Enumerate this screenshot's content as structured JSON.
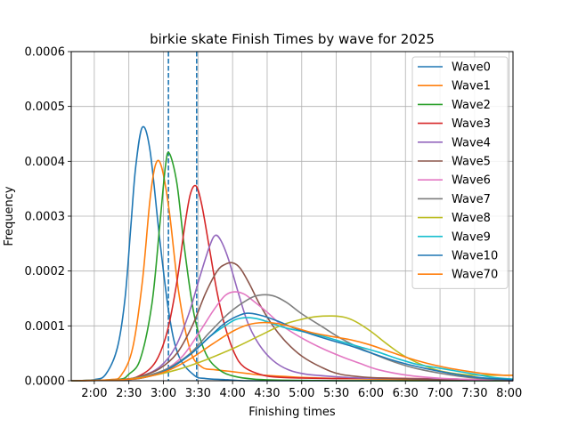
{
  "chart_data": {
    "type": "line",
    "title": "birkie skate Finish Times by wave for 2025",
    "xlabel": "Finishing times",
    "ylabel": "Frequency",
    "xlim": [
      6000,
      29000
    ],
    "ylim": [
      0,
      0.0006
    ],
    "x_ticks": [
      {
        "value": 7200,
        "label": "2:00"
      },
      {
        "value": 9000,
        "label": "2:30"
      },
      {
        "value": 10800,
        "label": "3:00"
      },
      {
        "value": 12600,
        "label": "3:30"
      },
      {
        "value": 14400,
        "label": "4:00"
      },
      {
        "value": 16200,
        "label": "4:30"
      },
      {
        "value": 18000,
        "label": "5:00"
      },
      {
        "value": 19800,
        "label": "5:30"
      },
      {
        "value": 21600,
        "label": "6:00"
      },
      {
        "value": 23400,
        "label": "6:30"
      },
      {
        "value": 25200,
        "label": "7:00"
      },
      {
        "value": 27000,
        "label": "7:30"
      },
      {
        "value": 28800,
        "label": "8:00"
      }
    ],
    "y_ticks": [
      {
        "value": 0,
        "label": "0.0000"
      },
      {
        "value": 0.0001,
        "label": "0.0001"
      },
      {
        "value": 0.0002,
        "label": "0.0002"
      },
      {
        "value": 0.0003,
        "label": "0.0003"
      },
      {
        "value": 0.0004,
        "label": "0.0004"
      },
      {
        "value": 0.0005,
        "label": "0.0005"
      },
      {
        "value": 0.0006,
        "label": "0.0006"
      }
    ],
    "grid": true,
    "legend_position": "top-right",
    "vlines": [
      {
        "x": 11060,
        "style": "dashed",
        "color": "#1f77b4"
      },
      {
        "x": 12530,
        "style": "dashed",
        "color": "#1f77b4"
      }
    ],
    "series": [
      {
        "name": "Wave0",
        "color": "#1f77b4",
        "x": [
          6000,
          7200,
          7800,
          8400,
          8800,
          9100,
          9350,
          9700,
          10100,
          10600,
          11100,
          11600,
          12400,
          13000,
          14000,
          15000,
          17000,
          20000,
          24000,
          29000
        ],
        "y": [
          0,
          2e-06,
          1.2e-05,
          6e-05,
          0.00015,
          0.00028,
          0.000388,
          0.000462,
          0.00042,
          0.00026,
          0.00012,
          4.5e-05,
          1e-05,
          4e-06,
          2e-06,
          0,
          0,
          0,
          0,
          0
        ]
      },
      {
        "name": "Wave1",
        "color": "#ff7f0e",
        "x": [
          6000,
          8000,
          8600,
          9200,
          9700,
          10100,
          10400,
          10700,
          11100,
          11600,
          12200,
          12800,
          13500,
          14300,
          15200,
          16000,
          17000,
          18000,
          20000,
          22000,
          24000,
          26000,
          29000
        ],
        "y": [
          0,
          2e-06,
          1e-05,
          6e-05,
          0.00018,
          0.00033,
          0.000395,
          0.00039,
          0.00031,
          0.00016,
          5.5e-05,
          2.5e-05,
          2e-05,
          1.7e-05,
          1.3e-05,
          1e-05,
          8e-06,
          6e-06,
          4e-06,
          3e-06,
          2e-06,
          1e-06,
          0
        ]
      },
      {
        "name": "Wave2",
        "color": "#2ca02c",
        "x": [
          6000,
          8400,
          9000,
          9600,
          10200,
          10600,
          10900,
          11100,
          11500,
          11900,
          12400,
          13000,
          13700,
          14500,
          15500,
          17000,
          20000,
          24000,
          29000
        ],
        "y": [
          0,
          2e-06,
          1.2e-05,
          4e-05,
          0.00014,
          0.00028,
          0.00039,
          0.000415,
          0.00036,
          0.00024,
          0.00012,
          5e-05,
          2e-05,
          8e-06,
          3e-06,
          1e-06,
          0,
          0,
          0
        ]
      },
      {
        "name": "Wave3",
        "color": "#d62728",
        "x": [
          6000,
          8600,
          9600,
          10400,
          11000,
          11500,
          11900,
          12200,
          12500,
          12800,
          13200,
          13600,
          14000,
          14500,
          15000,
          16000,
          17000,
          18000,
          20000,
          22000,
          24000,
          26000,
          29000
        ],
        "y": [
          0,
          2e-06,
          1e-05,
          3.5e-05,
          9e-05,
          0.00018,
          0.00028,
          0.00034,
          0.000355,
          0.00032,
          0.00024,
          0.00016,
          0.0001,
          5e-05,
          2.5e-05,
          1e-05,
          6e-06,
          5e-06,
          4e-06,
          5e-06,
          4e-06,
          3e-06,
          0
        ]
      },
      {
        "name": "Wave4",
        "color": "#9467bd",
        "x": [
          6000,
          8600,
          9600,
          10600,
          11400,
          12100,
          12700,
          13200,
          13500,
          13800,
          14200,
          14700,
          15200,
          15800,
          16500,
          17300,
          18200,
          19500,
          21000,
          23000,
          26000,
          29000
        ],
        "y": [
          0,
          2e-06,
          8e-06,
          2.5e-05,
          6e-05,
          0.00012,
          0.00019,
          0.000245,
          0.000265,
          0.000255,
          0.00022,
          0.00016,
          0.000105,
          6.5e-05,
          3.7e-05,
          2e-05,
          1.2e-05,
          8e-06,
          5e-06,
          4e-06,
          2e-06,
          0
        ]
      },
      {
        "name": "Wave5",
        "color": "#8c564b",
        "x": [
          6000,
          8600,
          9600,
          10600,
          11500,
          12300,
          13000,
          13600,
          14000,
          14400,
          14800,
          15300,
          15800,
          16500,
          17200,
          18000,
          19000,
          20000,
          21500,
          23000,
          25000,
          29000
        ],
        "y": [
          0,
          2e-06,
          8e-06,
          2.2e-05,
          5e-05,
          0.0001,
          0.00016,
          0.0002,
          0.000212,
          0.000215,
          0.000205,
          0.000175,
          0.00014,
          0.0001,
          7e-05,
          4.5e-05,
          2.5e-05,
          1.2e-05,
          6e-06,
          4e-06,
          2e-06,
          0
        ]
      },
      {
        "name": "Wave6",
        "color": "#e377c2",
        "x": [
          6000,
          8800,
          9800,
          10800,
          11800,
          12700,
          13400,
          14000,
          14500,
          15000,
          15500,
          16200,
          17000,
          18000,
          19000,
          20000,
          21000,
          22000,
          23500,
          25000,
          27000,
          29000
        ],
        "y": [
          0,
          2e-06,
          6e-06,
          1.8e-05,
          4.5e-05,
          9e-05,
          0.000128,
          0.000155,
          0.000162,
          0.000158,
          0.000145,
          0.000125,
          0.0001,
          7.8e-05,
          6e-05,
          4.5e-05,
          3.2e-05,
          2e-05,
          1e-05,
          5e-06,
          2e-06,
          0
        ]
      },
      {
        "name": "Wave7",
        "color": "#7f7f7f",
        "x": [
          6000,
          8600,
          9800,
          11000,
          12200,
          13200,
          14200,
          15200,
          15800,
          16500,
          17200,
          18000,
          19000,
          20000,
          21000,
          22000,
          23000,
          24000,
          25500,
          27000,
          29000
        ],
        "y": [
          0,
          2e-06,
          8e-06,
          2.2e-05,
          5e-05,
          8.8e-05,
          0.000123,
          0.000148,
          0.000156,
          0.000155,
          0.000143,
          0.000122,
          0.0001,
          7.8e-05,
          6e-05,
          4.5e-05,
          3.2e-05,
          2.2e-05,
          1.2e-05,
          5e-06,
          0
        ]
      },
      {
        "name": "Wave8",
        "color": "#bcbd22",
        "x": [
          6000,
          8600,
          10000,
          11500,
          13000,
          14500,
          15800,
          17000,
          18000,
          18800,
          19600,
          20200,
          20800,
          21600,
          22400,
          23200,
          24200,
          25200,
          26500,
          27500,
          28500,
          29000
        ],
        "y": [
          0,
          2e-06,
          8e-06,
          2e-05,
          3.8e-05,
          6e-05,
          8.2e-05,
          0.000102,
          0.000112,
          0.000117,
          0.000118,
          0.000116,
          0.000108,
          9e-05,
          6.8e-05,
          4.8e-05,
          3e-05,
          1.8e-05,
          1.1e-05,
          1e-05,
          1e-05,
          1e-05
        ]
      },
      {
        "name": "Wave9",
        "color": "#17becf",
        "x": [
          6000,
          8600,
          9800,
          11000,
          12200,
          13200,
          14000,
          14600,
          15200,
          15800,
          16500,
          17200,
          18000,
          19000,
          20000,
          21000,
          22000,
          23000,
          24000,
          25000,
          26000,
          27000,
          28000,
          29000
        ],
        "y": [
          0,
          2e-06,
          6e-06,
          2e-05,
          4.8e-05,
          8e-05,
          0.0001,
          0.000112,
          0.000115,
          0.000112,
          0.000104,
          9.6e-05,
          9e-05,
          8.2e-05,
          7.2e-05,
          6.2e-05,
          5.2e-05,
          4e-05,
          3e-05,
          2.4e-05,
          1.8e-05,
          1.2e-05,
          6e-06,
          3e-06
        ]
      },
      {
        "name": "Wave10",
        "color": "#1f77b4",
        "x": [
          6000,
          8600,
          9800,
          11000,
          12200,
          13200,
          14000,
          14800,
          15300,
          16000,
          16800,
          17600,
          18500,
          19500,
          20500,
          21500,
          22500,
          23500,
          24500,
          25500,
          26500,
          27500,
          29000
        ],
        "y": [
          0,
          2e-06,
          6e-06,
          2e-05,
          4.8e-05,
          8e-05,
          0.000105,
          0.00012,
          0.000123,
          0.000118,
          0.000108,
          9.6e-05,
          8.5e-05,
          7.4e-05,
          6.4e-05,
          5.2e-05,
          4e-05,
          3e-05,
          2.2e-05,
          1.5e-05,
          9e-06,
          5e-06,
          2e-06
        ]
      },
      {
        "name": "Wave70",
        "color": "#ff7f0e",
        "x": [
          6000,
          8600,
          9800,
          11000,
          12200,
          13400,
          14400,
          15200,
          16000,
          16800,
          17600,
          18500,
          19500,
          20500,
          21500,
          22500,
          23500,
          24500,
          25500,
          26500,
          27500,
          28500,
          29000
        ],
        "y": [
          0,
          2e-06,
          6e-06,
          1.8e-05,
          4e-05,
          6.8e-05,
          9e-05,
          0.000102,
          0.000106,
          0.000104,
          9.7e-05,
          8.8e-05,
          8.1e-05,
          7.5e-05,
          6.6e-05,
          5.4e-05,
          4.2e-05,
          3.2e-05,
          2.4e-05,
          1.8e-05,
          1.3e-05,
          1e-05,
          1e-05
        ]
      }
    ]
  }
}
